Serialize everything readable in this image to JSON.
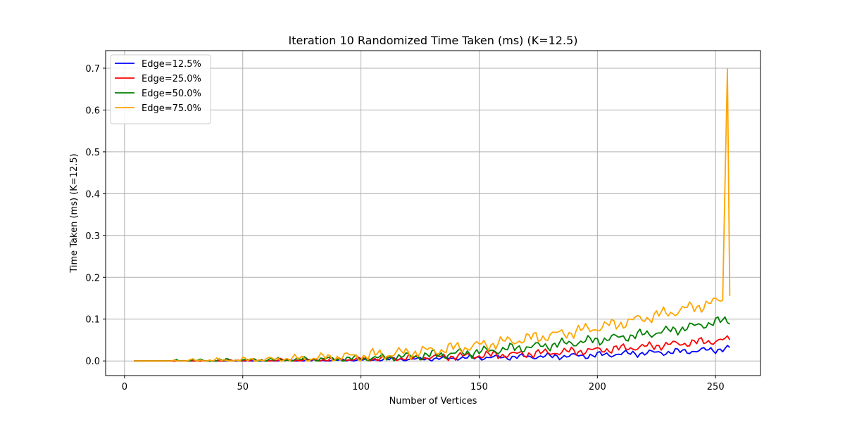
{
  "chart_data": {
    "type": "line",
    "title": "Iteration 10 Randomized Time Taken (ms) (K=12.5)",
    "xlabel": "Number of Vertices",
    "ylabel": "Time Taken (ms) (K=12.5)",
    "xlim": [
      -8,
      269
    ],
    "ylim": [
      -0.035,
      0.742
    ],
    "xticks": [
      0,
      50,
      100,
      150,
      200,
      250
    ],
    "yticks": [
      0.0,
      0.1,
      0.2,
      0.3,
      0.4,
      0.5,
      0.6,
      0.7
    ],
    "xtick_labels": [
      "0",
      "50",
      "100",
      "150",
      "200",
      "250"
    ],
    "ytick_labels": [
      "0.0",
      "0.1",
      "0.2",
      "0.3",
      "0.4",
      "0.5",
      "0.6",
      "0.7"
    ],
    "grid": true,
    "legend_position": "top-left",
    "x_range": [
      4,
      256
    ],
    "series": [
      {
        "name": "Edge=12.5%",
        "color": "#0000ff",
        "points": [
          [
            4,
            0
          ],
          [
            20,
            0
          ],
          [
            40,
            0
          ],
          [
            60,
            0
          ],
          [
            80,
            0.001
          ],
          [
            100,
            0.002
          ],
          [
            110,
            0.004
          ],
          [
            120,
            0.004
          ],
          [
            130,
            0.005
          ],
          [
            140,
            0.007
          ],
          [
            150,
            0.008
          ],
          [
            160,
            0.009
          ],
          [
            170,
            0.01
          ],
          [
            180,
            0.011
          ],
          [
            190,
            0.012
          ],
          [
            200,
            0.014
          ],
          [
            210,
            0.017
          ],
          [
            220,
            0.019
          ],
          [
            230,
            0.021
          ],
          [
            240,
            0.024
          ],
          [
            250,
            0.027
          ],
          [
            256,
            0.03
          ]
        ],
        "noise": [
          0.004,
          0.002,
          0.004
        ]
      },
      {
        "name": "Edge=25.0%",
        "color": "#ff0000",
        "points": [
          [
            4,
            0
          ],
          [
            20,
            0
          ],
          [
            40,
            0
          ],
          [
            60,
            0.001
          ],
          [
            80,
            0.002
          ],
          [
            100,
            0.004
          ],
          [
            110,
            0.006
          ],
          [
            120,
            0.007
          ],
          [
            130,
            0.009
          ],
          [
            140,
            0.011
          ],
          [
            150,
            0.013
          ],
          [
            160,
            0.015
          ],
          [
            170,
            0.017
          ],
          [
            180,
            0.02
          ],
          [
            190,
            0.023
          ],
          [
            200,
            0.026
          ],
          [
            210,
            0.03
          ],
          [
            220,
            0.034
          ],
          [
            230,
            0.039
          ],
          [
            240,
            0.044
          ],
          [
            250,
            0.048
          ],
          [
            256,
            0.051
          ]
        ],
        "noise": [
          0.005,
          0.003,
          0.005
        ]
      },
      {
        "name": "Edge=50.0%",
        "color": "#008000",
        "points": [
          [
            4,
            0
          ],
          [
            20,
            0
          ],
          [
            40,
            0.001
          ],
          [
            60,
            0.002
          ],
          [
            80,
            0.004
          ],
          [
            100,
            0.006
          ],
          [
            110,
            0.008
          ],
          [
            120,
            0.011
          ],
          [
            130,
            0.014
          ],
          [
            140,
            0.018
          ],
          [
            150,
            0.022
          ],
          [
            160,
            0.028
          ],
          [
            170,
            0.033
          ],
          [
            180,
            0.038
          ],
          [
            190,
            0.044
          ],
          [
            200,
            0.05
          ],
          [
            210,
            0.057
          ],
          [
            220,
            0.064
          ],
          [
            230,
            0.072
          ],
          [
            240,
            0.082
          ],
          [
            250,
            0.093
          ],
          [
            256,
            0.098
          ]
        ],
        "noise": [
          0.006,
          0.003,
          0.006
        ]
      },
      {
        "name": "Edge=75.0%",
        "color": "#ffa500",
        "points": [
          [
            4,
            0
          ],
          [
            20,
            0
          ],
          [
            40,
            0.001
          ],
          [
            60,
            0.003
          ],
          [
            80,
            0.007
          ],
          [
            100,
            0.012
          ],
          [
            110,
            0.016
          ],
          [
            120,
            0.02
          ],
          [
            130,
            0.025
          ],
          [
            140,
            0.031
          ],
          [
            150,
            0.037
          ],
          [
            160,
            0.045
          ],
          [
            170,
            0.053
          ],
          [
            180,
            0.061
          ],
          [
            190,
            0.07
          ],
          [
            200,
            0.08
          ],
          [
            210,
            0.09
          ],
          [
            220,
            0.103
          ],
          [
            230,
            0.115
          ],
          [
            240,
            0.128
          ],
          [
            250,
            0.14
          ],
          [
            253,
            0.15
          ],
          [
            255,
            0.708
          ],
          [
            256,
            0.168
          ]
        ],
        "noise": [
          0.007,
          0.004,
          0.008
        ]
      }
    ]
  }
}
